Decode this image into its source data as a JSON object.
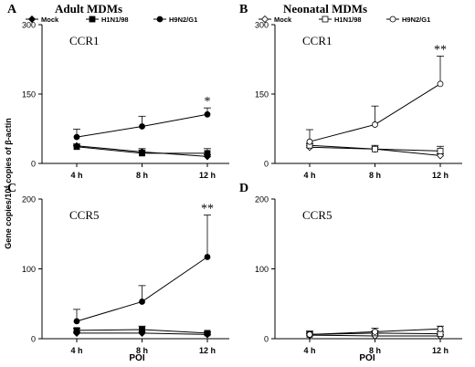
{
  "ylabel_prefix": "Gene copies/10",
  "ylabel_sup": "4",
  "ylabel_suffix": " copies of β-actin",
  "xlabel": "POI",
  "categories": [
    "4 h",
    "8 h",
    "12 h"
  ],
  "series_styles": [
    {
      "name": "Mock",
      "marker": "diamond",
      "filled": true
    },
    {
      "name": "H1N1/98",
      "marker": "square",
      "filled": true
    },
    {
      "name": "H9N2/G1",
      "marker": "circle",
      "filled": true
    }
  ],
  "legend_labels": [
    "Mock",
    "H1N1/98",
    "H9N2/G1"
  ],
  "colors": {
    "ink": "#000000",
    "open_ink": "#555555",
    "background": "#ffffff"
  },
  "chart_data": [
    {
      "panel_letter": "A",
      "title": "Adult MDMs",
      "receptor": "CCR1",
      "type": "line",
      "legend": "top",
      "filled_markers": true,
      "ylim": [
        0,
        300
      ],
      "yticks": [
        0,
        150,
        300
      ],
      "categories": [
        "4 h",
        "8 h",
        "12 h"
      ],
      "series": [
        {
          "name": "Mock",
          "values": [
            38,
            25,
            15
          ],
          "errors": [
            4,
            4,
            4
          ]
        },
        {
          "name": "H1N1/98",
          "values": [
            36,
            22,
            22
          ],
          "errors": [
            3,
            10,
            10
          ]
        },
        {
          "name": "H9N2/G1",
          "values": [
            57,
            80,
            106
          ],
          "errors": [
            17,
            22,
            14
          ]
        }
      ],
      "annotation": "*"
    },
    {
      "panel_letter": "B",
      "title": "Neonatal MDMs",
      "receptor": "CCR1",
      "type": "line",
      "legend": "top",
      "filled_markers": false,
      "ylim": [
        0,
        300
      ],
      "yticks": [
        0,
        150,
        300
      ],
      "categories": [
        "4 h",
        "8 h",
        "12 h"
      ],
      "series": [
        {
          "name": "Mock",
          "values": [
            35,
            31,
            17
          ],
          "errors": [
            4,
            4,
            4
          ]
        },
        {
          "name": "H1N1/98",
          "values": [
            39,
            31,
            27
          ],
          "errors": [
            4,
            8,
            10
          ]
        },
        {
          "name": "H9N2/G1",
          "values": [
            47,
            84,
            172
          ],
          "errors": [
            26,
            40,
            60
          ]
        }
      ],
      "annotation": "**"
    },
    {
      "panel_letter": "C",
      "title": "",
      "receptor": "CCR5",
      "type": "line",
      "legend": "none",
      "filled_markers": true,
      "ylim": [
        0,
        200
      ],
      "yticks": [
        0,
        100,
        200
      ],
      "categories": [
        "4 h",
        "8 h",
        "12 h"
      ],
      "series": [
        {
          "name": "Mock",
          "values": [
            8,
            8,
            6
          ],
          "errors": [
            2,
            2,
            2
          ]
        },
        {
          "name": "H1N1/98",
          "values": [
            12,
            13,
            8
          ],
          "errors": [
            3,
            5,
            2
          ]
        },
        {
          "name": "H9N2/G1",
          "values": [
            25,
            53,
            117
          ],
          "errors": [
            17,
            23,
            60
          ]
        }
      ],
      "annotation": "**"
    },
    {
      "panel_letter": "D",
      "title": "",
      "receptor": "CCR5",
      "type": "line",
      "legend": "none",
      "filled_markers": false,
      "ylim": [
        0,
        200
      ],
      "yticks": [
        0,
        100,
        200
      ],
      "categories": [
        "4 h",
        "8 h",
        "12 h"
      ],
      "series": [
        {
          "name": "Mock",
          "values": [
            5,
            4,
            4
          ],
          "errors": [
            2,
            2,
            2
          ]
        },
        {
          "name": "H1N1/98",
          "values": [
            6,
            8,
            7
          ],
          "errors": [
            3,
            3,
            3
          ]
        },
        {
          "name": "H9N2/G1",
          "values": [
            6,
            10,
            14
          ],
          "errors": [
            5,
            5,
            4
          ]
        }
      ],
      "annotation": ""
    }
  ]
}
